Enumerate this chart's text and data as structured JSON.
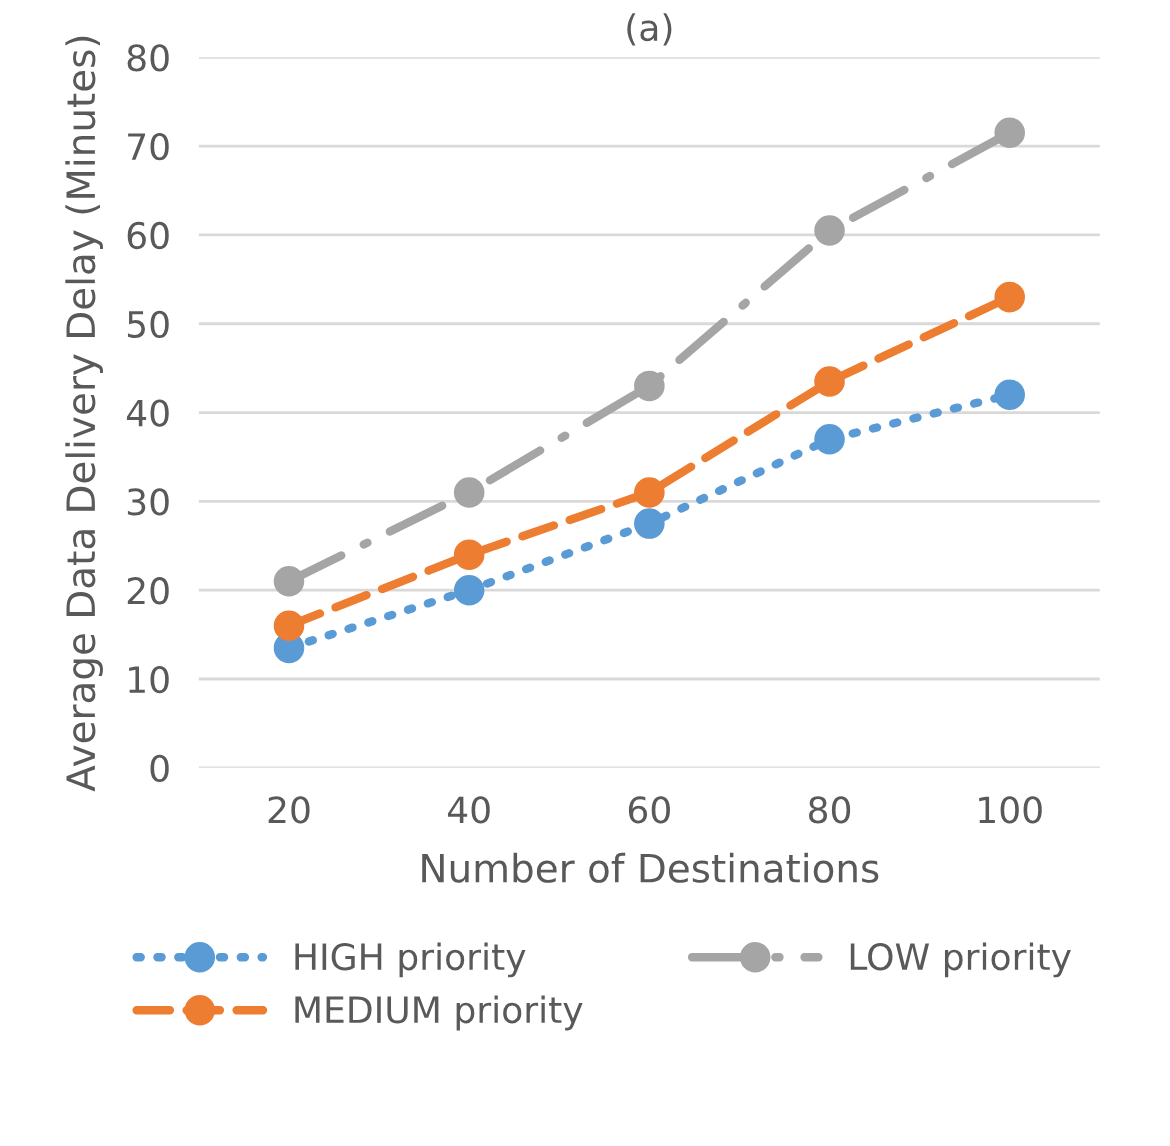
{
  "chart_data": {
    "type": "line",
    "title": "(a)",
    "xlabel": "Number of Destinations",
    "ylabel": "Average Data Delivery Delay (Minutes)",
    "categories": [
      "20",
      "40",
      "60",
      "80",
      "100"
    ],
    "series": [
      {
        "name": "HIGH priority",
        "color": "#5b9bd5",
        "line_style": "dotted",
        "values": [
          13.5,
          20,
          27.5,
          37,
          42
        ]
      },
      {
        "name": "MEDIUM priority",
        "color": "#ed7d31",
        "line_style": "dashed",
        "values": [
          16,
          24,
          31,
          43.5,
          53
        ]
      },
      {
        "name": "LOW priority",
        "color": "#a5a5a5",
        "line_style": "dashdot",
        "values": [
          21,
          31,
          43,
          60.5,
          71.5
        ]
      }
    ],
    "ylim": [
      0,
      80
    ],
    "yticks": [
      0,
      10,
      20,
      30,
      40,
      50,
      60,
      70,
      80
    ],
    "grid": "y",
    "legend": "bottom",
    "marker": "circle"
  }
}
